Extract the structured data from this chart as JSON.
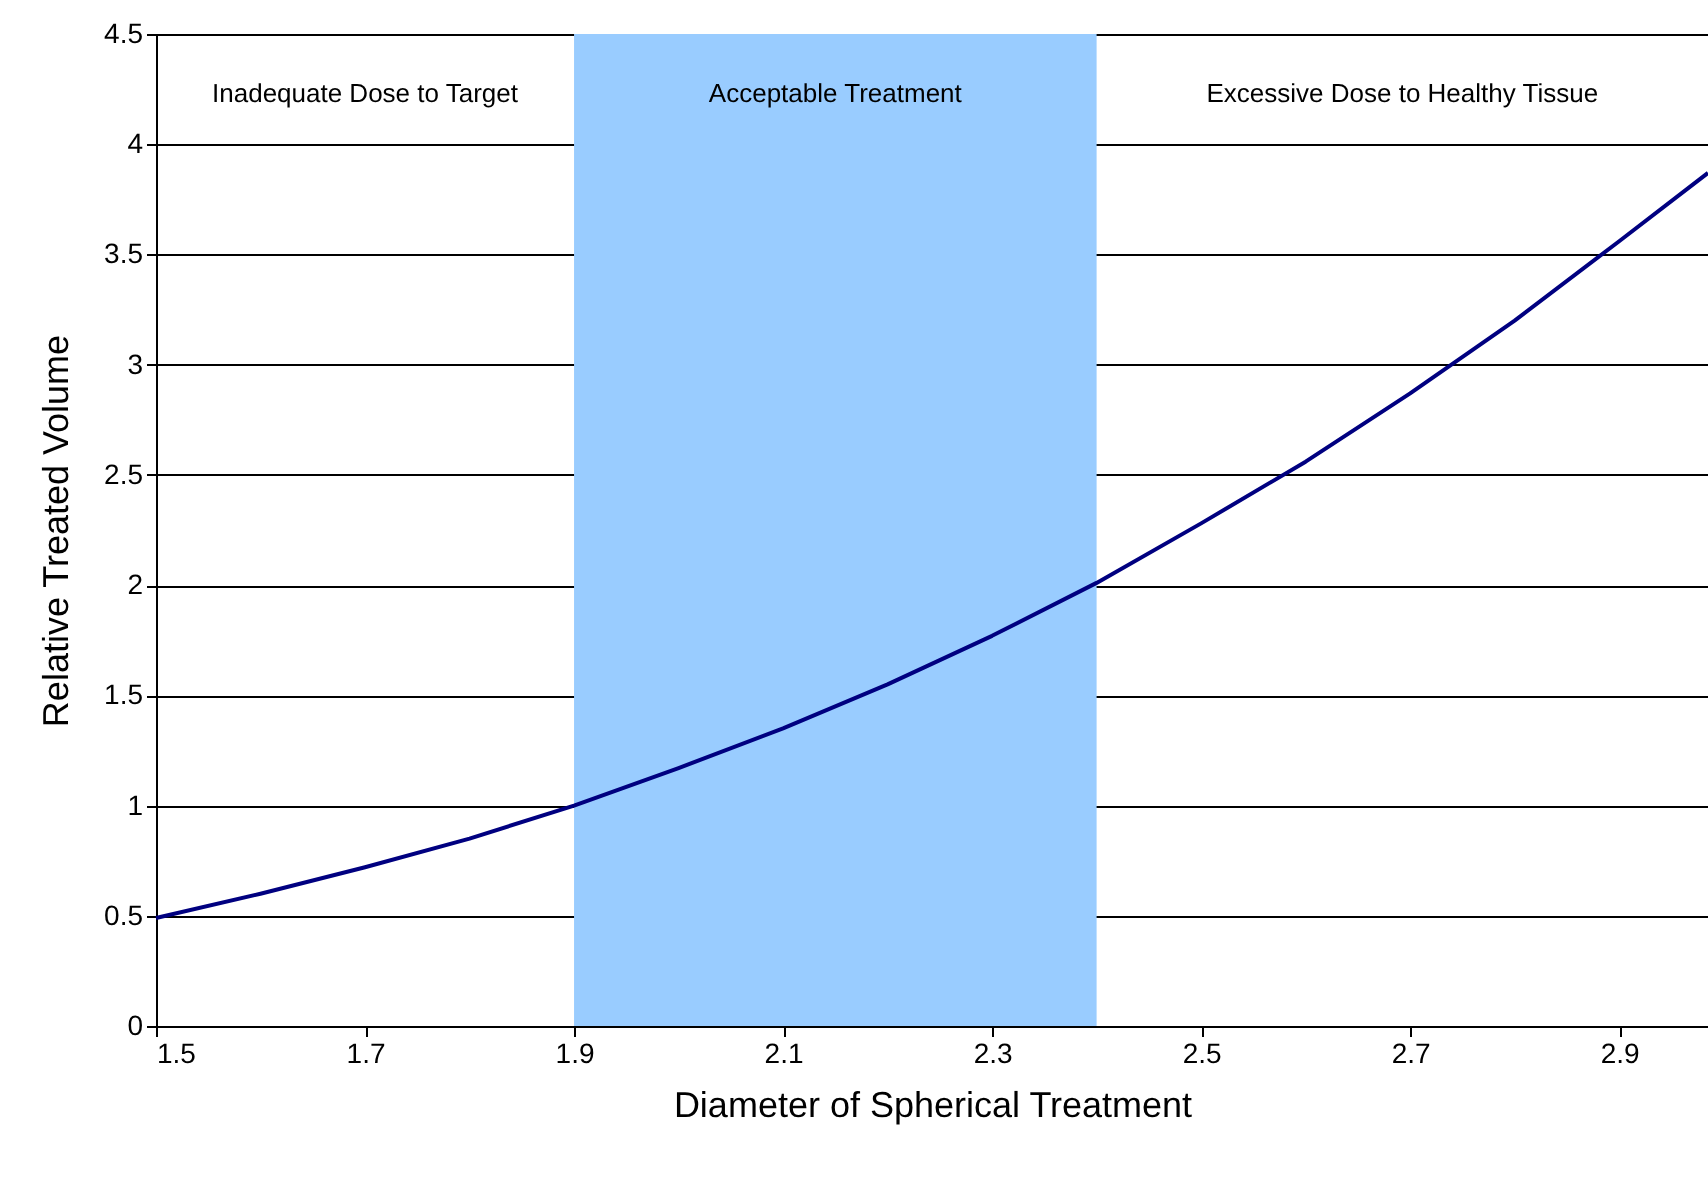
{
  "chart_data": {
    "type": "line",
    "xlabel": "Diameter of Spherical Treatment",
    "ylabel": "Relative Treated Volume",
    "x": [
      1.5,
      1.6,
      1.7,
      1.8,
      1.9,
      2.0,
      2.1,
      2.2,
      2.3,
      2.4,
      2.5,
      2.6,
      2.7,
      2.8,
      2.9,
      2.985
    ],
    "series": [
      {
        "color": "#000080",
        "values": [
          0.49,
          0.6,
          0.72,
          0.85,
          1.0,
          1.17,
          1.35,
          1.55,
          1.77,
          2.01,
          2.28,
          2.56,
          2.87,
          3.2,
          3.56,
          3.87
        ]
      }
    ],
    "xlim": [
      1.5,
      2.985
    ],
    "xticks": [
      1.5,
      1.7,
      1.9,
      2.1,
      2.3,
      2.5,
      2.7,
      2.9
    ],
    "ylim": [
      0,
      4.5
    ],
    "yticks": [
      0,
      0.5,
      1,
      1.5,
      2,
      2.5,
      3,
      3.5,
      4,
      4.5
    ],
    "grid": "y",
    "marker": "none",
    "line_style": "solid",
    "bands": [
      {
        "axis": "x",
        "from": 1.9,
        "to": 2.4,
        "label": "Acceptable Treatment",
        "color": "#99ccff"
      }
    ],
    "annotations": [
      "Inadequate Dose to Target",
      "Excessive Dose to Healthy Tissue"
    ]
  }
}
